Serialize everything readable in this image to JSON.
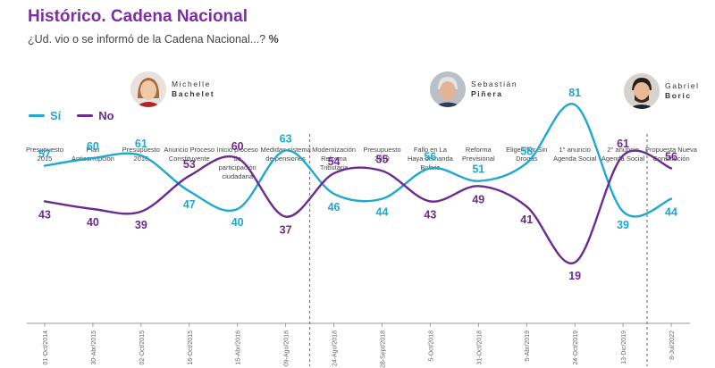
{
  "header": {
    "title": "Histórico. Cadena Nacional",
    "subtitle": "¿Ud. vio o se informó de la Cadena Nacional...?",
    "subtitle_unit": "%"
  },
  "legend": [
    {
      "label": "Sí",
      "color": "#1fa8d0"
    },
    {
      "label": "No",
      "color": "#6a2c91"
    }
  ],
  "presidents": [
    {
      "first": "Michelle",
      "last": "Bachelet"
    },
    {
      "first": "Sebastián",
      "last": "Piñera"
    },
    {
      "first": "Gabriel",
      "last": "Boric"
    }
  ],
  "chart_data": {
    "type": "line",
    "events": [
      "Presupuesto 2015",
      "Plan Anticorrupción",
      "Presupuesto 2016",
      "Anuncio Proceso Constituyente",
      "Inicio proceso de participación ciudadana",
      "Medidas sistema de pensiones",
      "Modernización Reforma Tributaria",
      "Presupuesto 2019",
      "Fallo en La Haya demanda Bolivia",
      "Reforma Previsional",
      "Elige Vivir Sin Drogas",
      "1° anuncio Agenda Social",
      "2° anuncio Agenda Social",
      "Propuesta Nueva Constitución"
    ],
    "categories": [
      "01-Oct/2014",
      "30-Abr/2015",
      "02-Oct/2015",
      "16-Oct/2015",
      "15-Abr/2016",
      "09-Ago/2016",
      "24-Ago/2018",
      "28-Sept/2018",
      "5-Oct/2018",
      "31-Oct/2018",
      "5-Abr/2019",
      "24-Oct/2019",
      "13-Dic/2019",
      "8-Jul/2022"
    ],
    "series": [
      {
        "name": "Sí",
        "color": "#1fa8d0",
        "values": [
          57,
          60,
          61,
          47,
          40,
          63,
          46,
          44,
          56,
          51,
          58,
          81,
          39,
          44
        ]
      },
      {
        "name": "No",
        "color": "#6a2c91",
        "values": [
          43,
          40,
          39,
          53,
          60,
          37,
          54,
          55,
          43,
          49,
          41,
          19,
          61,
          56
        ]
      }
    ]
  }
}
